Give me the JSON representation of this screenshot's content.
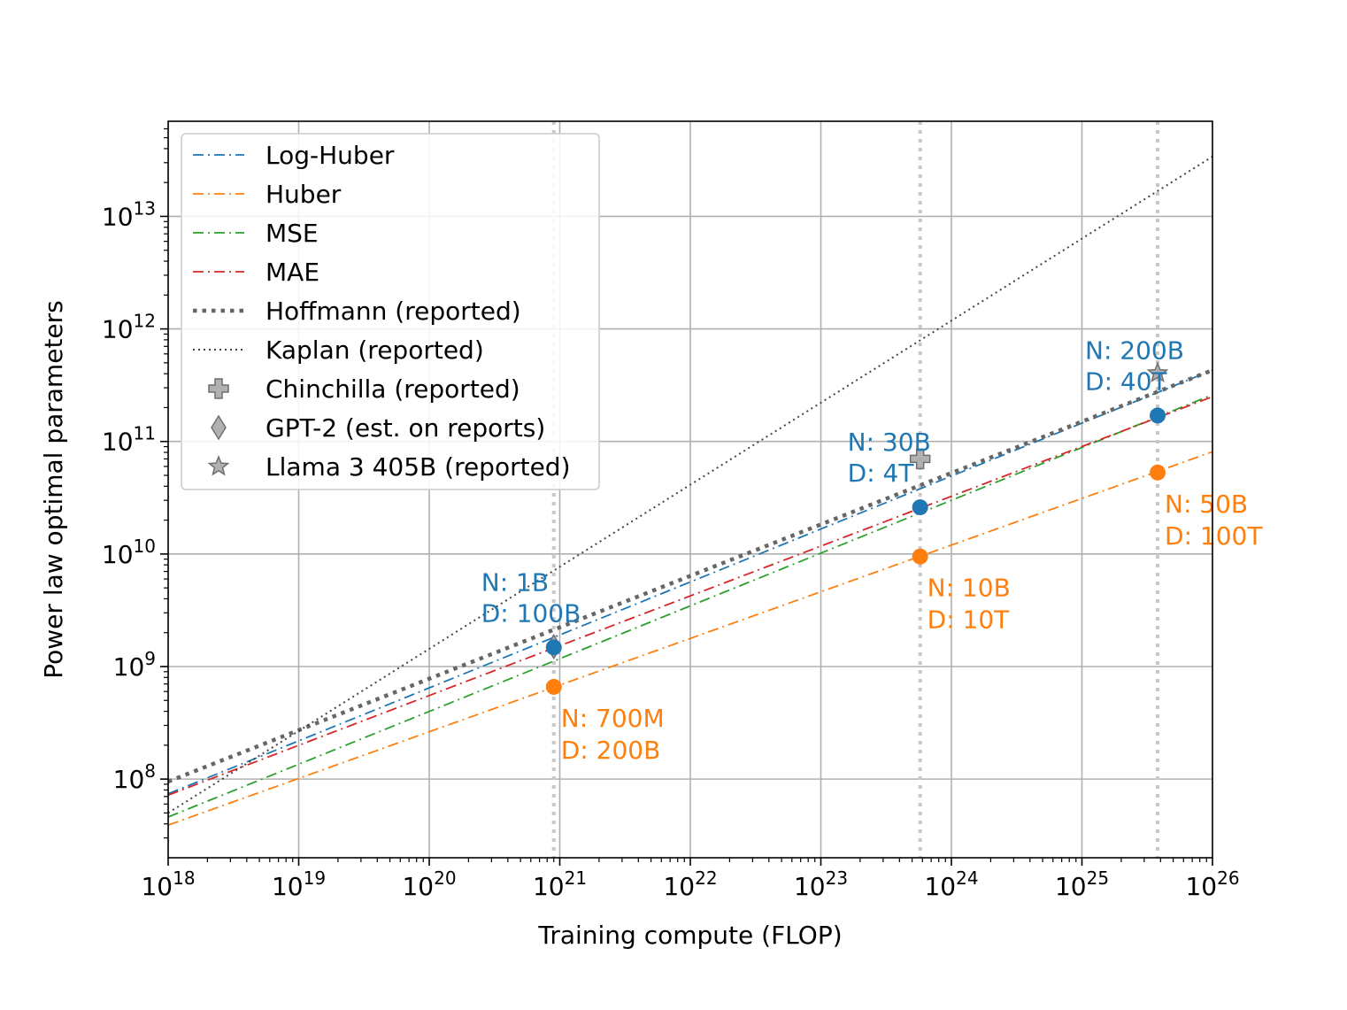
{
  "chart_data": {
    "type": "line",
    "xscale": "log",
    "yscale": "log",
    "xlabel": "Training compute (FLOP)",
    "ylabel": "Power law optimal parameters",
    "xlim": [
      1e+18,
      1e+26
    ],
    "ylim": [
      20000000.0,
      70000000000000.0
    ],
    "x_ticks": [
      18,
      19,
      20,
      21,
      22,
      23,
      24,
      25,
      26
    ],
    "y_ticks": [
      8,
      9,
      10,
      11,
      12,
      13
    ],
    "grid": true,
    "legend_position": "upper-left",
    "colors": {
      "log_huber": "#1f77b4",
      "huber": "#ff7f0e",
      "mse": "#2ca02c",
      "mae": "#d62728",
      "hoffmann": "#666666",
      "kaplan": "#444444",
      "reported_marker": "#999999",
      "vline": "#c8c8c8",
      "grid": "#b0b0b0"
    },
    "series": [
      {
        "key": "log_huber",
        "name": "Log-Huber",
        "style": "dashdot",
        "x_log": [
          18,
          26
        ],
        "y": [
          74000000.0,
          430000000000.0
        ]
      },
      {
        "key": "huber",
        "name": "Huber",
        "style": "dashdot",
        "x_log": [
          18,
          26
        ],
        "y": [
          39000000.0,
          81000000000.0
        ]
      },
      {
        "key": "mse",
        "name": "MSE",
        "style": "dashdot",
        "x_log": [
          18,
          26
        ],
        "y": [
          46000000.0,
          260000000000.0
        ]
      },
      {
        "key": "mae",
        "name": "MAE",
        "style": "dashdot",
        "x_log": [
          18,
          26
        ],
        "y": [
          72000000.0,
          250000000000.0
        ]
      },
      {
        "key": "hoffmann",
        "name": "Hoffmann (reported)",
        "style": "dotted-thick",
        "x_log": [
          18,
          26
        ],
        "y": [
          95000000.0,
          430000000000.0
        ]
      },
      {
        "key": "kaplan",
        "name": "Kaplan (reported)",
        "style": "dotted-thin",
        "x_log": [
          18,
          26
        ],
        "y": [
          50000000.0,
          34000000000000.0
        ]
      }
    ],
    "reported_points": [
      {
        "key": "chinchilla",
        "name": "Chinchilla (reported)",
        "marker": "plus",
        "x": 5.76e+23,
        "y": 70000000000.0
      },
      {
        "key": "gpt2",
        "name": "GPT-2 (est. on reports)",
        "marker": "diamond",
        "x": 9e+20,
        "y": 1500000000.0
      },
      {
        "key": "llama",
        "name": "Llama 3 405B (reported)",
        "marker": "star",
        "x": 3.8e+25,
        "y": 405000000000.0
      }
    ],
    "vertical_lines_x": [
      9e+20,
      5.76e+23,
      3.8e+25
    ],
    "optimal_points": [
      {
        "series": "log_huber",
        "x": 9e+20,
        "y": 1480000000.0,
        "label_n": "N: 1B",
        "label_d": "D: 100B",
        "label_side": "above"
      },
      {
        "series": "log_huber",
        "x": 5.76e+23,
        "y": 26000000000.0,
        "label_n": "N: 30B",
        "label_d": "D: 4T",
        "label_side": "above"
      },
      {
        "series": "log_huber",
        "x": 3.8e+25,
        "y": 170000000000.0,
        "label_n": "N: 200B",
        "label_d": "D: 40T",
        "label_side": "above"
      },
      {
        "series": "huber",
        "x": 9e+20,
        "y": 660000000.0,
        "label_n": "N: 700M",
        "label_d": "D: 200B",
        "label_side": "below"
      },
      {
        "series": "huber",
        "x": 5.76e+23,
        "y": 9500000000.0,
        "label_n": "N: 10B",
        "label_d": "D: 10T",
        "label_side": "below"
      },
      {
        "series": "huber",
        "x": 3.8e+25,
        "y": 53000000000.0,
        "label_n": "N: 50B",
        "label_d": "D: 100T",
        "label_side": "below"
      }
    ],
    "legend": [
      {
        "key": "log_huber",
        "label": "Log-Huber",
        "kind": "line"
      },
      {
        "key": "huber",
        "label": "Huber",
        "kind": "line"
      },
      {
        "key": "mse",
        "label": "MSE",
        "kind": "line"
      },
      {
        "key": "mae",
        "label": "MAE",
        "kind": "line"
      },
      {
        "key": "hoffmann",
        "label": "Hoffmann (reported)",
        "kind": "line"
      },
      {
        "key": "kaplan",
        "label": "Kaplan (reported)",
        "kind": "line"
      },
      {
        "key": "chinchilla",
        "label": "Chinchilla (reported)",
        "kind": "marker"
      },
      {
        "key": "gpt2",
        "label": "GPT-2 (est. on reports)",
        "kind": "marker"
      },
      {
        "key": "llama",
        "label": "Llama 3 405B (reported)",
        "kind": "marker"
      }
    ]
  }
}
